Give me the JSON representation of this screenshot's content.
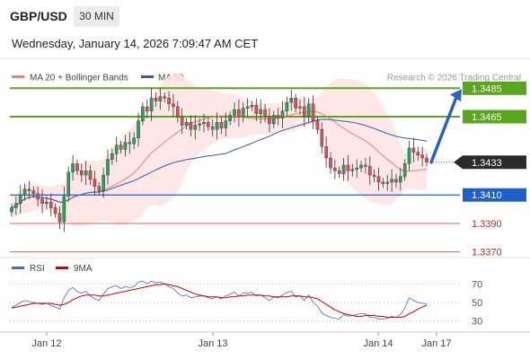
{
  "header": {
    "symbol": "GBP/USD",
    "timeframe": "30 MIN",
    "datetime": "Wednesday, January 14, 2026 7:09:47 AM CET"
  },
  "legend": {
    "ma20_label": "MA 20 + Bollinger Bands",
    "ma50_label": "MA 50",
    "credit": "Research © 2026 Trading Central",
    "rsi_label": "RSI",
    "ma9_label": "9MA"
  },
  "colors": {
    "ma20": "#f08080",
    "bollinger_fill": "#fde3e3",
    "ma50": "#3b5aa0",
    "resistance": "#5aa61e",
    "pivot": "#1f5fc8",
    "support": "#e06060",
    "last_price": "#2b2b2b",
    "arrow": "#2a64b4",
    "candle_up": "#2fa05a",
    "candle_down": "#e05050",
    "rsi": "#3f6bd0",
    "rsi_ma": "#cc0000"
  },
  "chart_data": [
    {
      "type": "candlestick",
      "x_ticks": [
        "Jan 12",
        "Jan 13",
        "Jan 14",
        "Jan 17"
      ],
      "ylim": [
        1.3366,
        1.3506
      ],
      "levels": [
        {
          "value": 1.3485,
          "label": "1.3485",
          "kind": "resistance"
        },
        {
          "value": 1.3465,
          "label": "1.3465",
          "kind": "resistance"
        },
        {
          "value": 1.341,
          "label": "1.3410",
          "kind": "pivot"
        },
        {
          "value": 1.339,
          "label": "1.3390",
          "kind": "support"
        },
        {
          "value": 1.337,
          "label": "1.3370",
          "kind": "support"
        }
      ],
      "last_price": {
        "value": 1.3433,
        "label": "1.3433"
      },
      "series": [
        {
          "name": "MA 20 + Bollinger Bands"
        },
        {
          "name": "MA 50"
        }
      ],
      "close": [
        1.3401,
        1.3404,
        1.341,
        1.3414,
        1.3413,
        1.3411,
        1.3407,
        1.3404,
        1.3405,
        1.3401,
        1.3397,
        1.3391,
        1.3409,
        1.3426,
        1.3432,
        1.3427,
        1.3424,
        1.3427,
        1.3421,
        1.3416,
        1.3413,
        1.3424,
        1.3435,
        1.3439,
        1.3445,
        1.3442,
        1.3447,
        1.3446,
        1.345,
        1.3462,
        1.3472,
        1.3469,
        1.3478,
        1.3476,
        1.3479,
        1.3478,
        1.3474,
        1.3472,
        1.3465,
        1.3459,
        1.3461,
        1.3456,
        1.3459,
        1.346,
        1.3461,
        1.3458,
        1.3456,
        1.3461,
        1.3457,
        1.3462,
        1.3466,
        1.347,
        1.3465,
        1.3471,
        1.3472,
        1.3473,
        1.3467,
        1.347,
        1.3465,
        1.346,
        1.3466,
        1.3464,
        1.3469,
        1.3475,
        1.3478,
        1.3471,
        1.3472,
        1.3465,
        1.3474,
        1.3462,
        1.3456,
        1.3444,
        1.3436,
        1.3429,
        1.3427,
        1.3425,
        1.3431,
        1.3427,
        1.3428,
        1.3429,
        1.3431,
        1.343,
        1.3424,
        1.3423,
        1.3419,
        1.3418,
        1.3419,
        1.3421,
        1.3419,
        1.3423,
        1.3432,
        1.3443,
        1.344,
        1.3438,
        1.3436,
        1.3433
      ],
      "rsi": {
        "ticks": [
          70,
          50,
          30
        ],
        "ylim": [
          22,
          78
        ],
        "rsi": [
          45,
          47,
          50,
          52,
          51,
          50,
          49,
          48,
          49,
          47,
          45,
          43,
          55,
          63,
          66,
          62,
          60,
          62,
          57,
          54,
          52,
          59,
          65,
          67,
          68,
          65,
          67,
          66,
          67,
          72,
          73,
          70,
          73,
          71,
          72,
          70,
          67,
          65,
          60,
          57,
          58,
          55,
          56,
          57,
          57,
          55,
          54,
          56,
          54,
          57,
          59,
          61,
          57,
          60,
          60,
          61,
          57,
          58,
          55,
          52,
          56,
          55,
          58,
          61,
          62,
          56,
          57,
          52,
          58,
          50,
          46,
          39,
          36,
          34,
          33,
          32,
          37,
          35,
          36,
          37,
          38,
          38,
          34,
          34,
          32,
          32,
          33,
          35,
          34,
          37,
          44,
          55,
          52,
          50,
          49,
          48
        ],
        "rsi_ma": [
          44,
          45,
          46,
          47,
          48,
          49,
          49,
          49,
          49,
          49,
          48,
          47,
          48,
          50,
          53,
          55,
          57,
          58,
          58,
          58,
          57,
          57,
          58,
          59,
          60,
          61,
          62,
          63,
          64,
          65,
          66,
          67,
          68,
          69,
          69,
          70,
          69,
          68,
          67,
          65,
          63,
          61,
          59,
          58,
          57,
          56,
          56,
          56,
          55,
          55,
          56,
          56,
          57,
          57,
          58,
          58,
          58,
          58,
          57,
          57,
          56,
          56,
          56,
          56,
          57,
          57,
          57,
          56,
          56,
          55,
          54,
          51,
          48,
          45,
          42,
          40,
          38,
          37,
          36,
          35,
          35,
          36,
          36,
          36,
          35,
          35,
          34,
          34,
          34,
          34,
          35,
          38,
          40,
          43,
          45,
          47
        ]
      }
    }
  ]
}
